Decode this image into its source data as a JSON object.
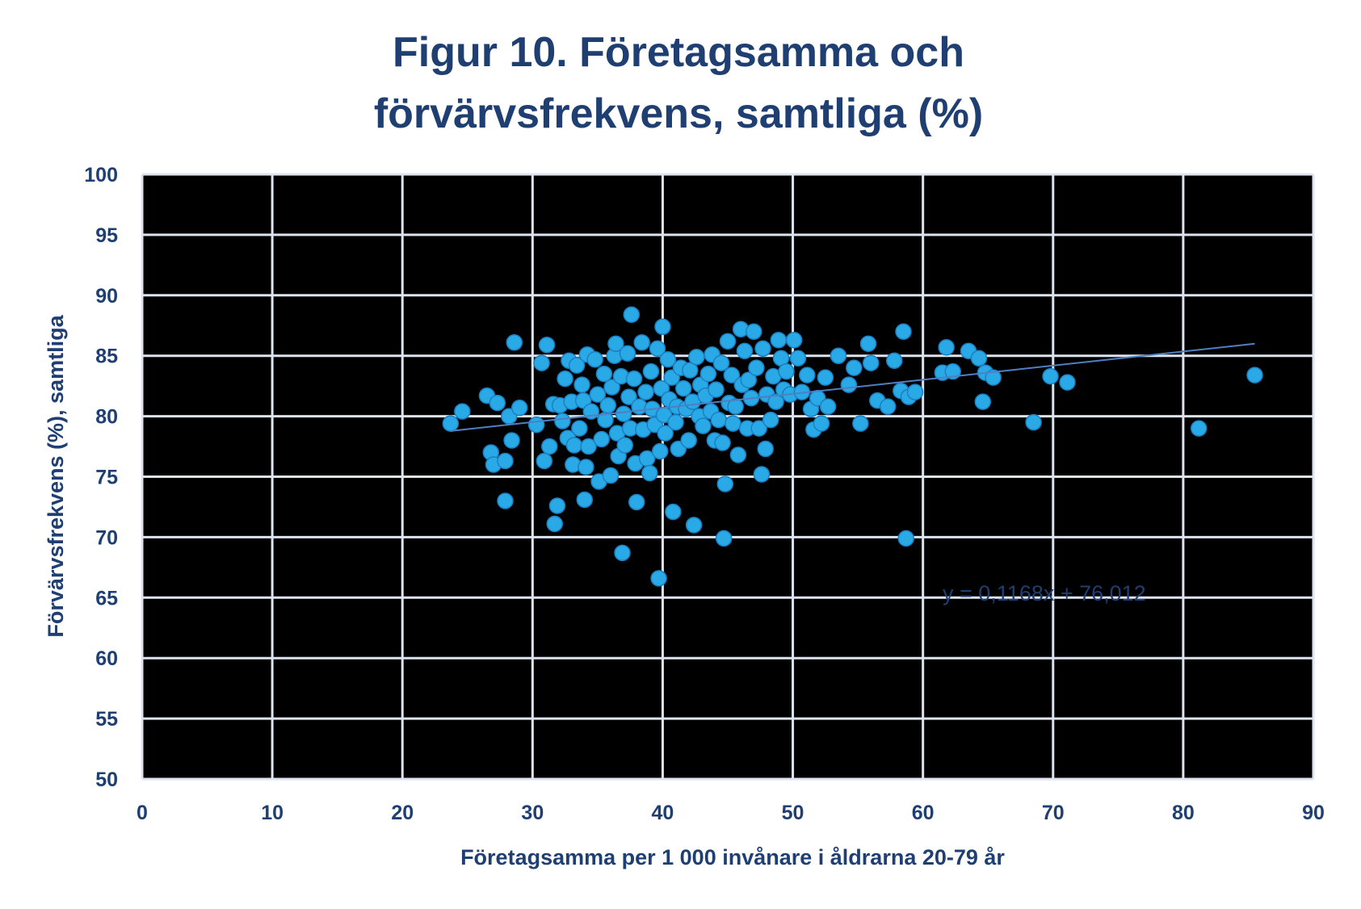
{
  "chart_data": {
    "type": "scatter",
    "title": [
      "Figur 10. Företagsamma och",
      "förvärvsfrekvens, samtliga (%)"
    ],
    "xlabel": "Företagsamma per 1 000 invånare i åldrarna 20-79 år",
    "ylabel": "Förvärvsfrekvens (%), samtliga",
    "xlim": [
      0,
      90
    ],
    "ylim": [
      50,
      100
    ],
    "xticks": [
      "0",
      "10",
      "20",
      "30",
      "40",
      "50",
      "60",
      "70",
      "80",
      "90"
    ],
    "yticks": [
      "50",
      "55",
      "60",
      "65",
      "70",
      "75",
      "80",
      "85",
      "90",
      "95",
      "100"
    ],
    "grid": true,
    "colors": {
      "plot_background": "#000000",
      "grid": "#dde3ef",
      "marker": "#29a9e6",
      "marker_edge": "#1b7fc1",
      "trendline": "#4f7fc2",
      "text": "#1f3f73"
    },
    "trendline": {
      "slope": 0.1168,
      "intercept": 76.012,
      "x_range": [
        23.7,
        85.5
      ],
      "label": "y = 0,1168x + 76,012"
    },
    "series": [
      {
        "points": [
          [
            23.7,
            79.4
          ],
          [
            24.6,
            80.4
          ],
          [
            26.5,
            81.7
          ],
          [
            26.8,
            77.0
          ],
          [
            27.0,
            76.0
          ],
          [
            27.3,
            81.1
          ],
          [
            27.9,
            76.3
          ],
          [
            27.9,
            73.0
          ],
          [
            28.2,
            80.0
          ],
          [
            28.4,
            78.0
          ],
          [
            28.6,
            86.1
          ],
          [
            29.0,
            80.7
          ],
          [
            30.3,
            79.3
          ],
          [
            30.7,
            84.4
          ],
          [
            30.9,
            76.3
          ],
          [
            31.1,
            85.9
          ],
          [
            31.3,
            77.5
          ],
          [
            31.6,
            81.0
          ],
          [
            31.7,
            71.1
          ],
          [
            31.9,
            72.6
          ],
          [
            32.1,
            80.9
          ],
          [
            32.3,
            79.6
          ],
          [
            32.5,
            83.1
          ],
          [
            32.7,
            78.2
          ],
          [
            32.8,
            84.6
          ],
          [
            33.0,
            81.2
          ],
          [
            33.1,
            76.0
          ],
          [
            33.2,
            77.6
          ],
          [
            33.4,
            84.2
          ],
          [
            33.6,
            79.0
          ],
          [
            33.8,
            82.6
          ],
          [
            33.9,
            81.3
          ],
          [
            34.0,
            73.1
          ],
          [
            34.1,
            75.8
          ],
          [
            34.2,
            85.1
          ],
          [
            34.3,
            77.5
          ],
          [
            34.5,
            80.4
          ],
          [
            34.8,
            84.7
          ],
          [
            35.0,
            81.8
          ],
          [
            35.1,
            74.6
          ],
          [
            35.3,
            78.1
          ],
          [
            35.5,
            83.5
          ],
          [
            35.6,
            79.7
          ],
          [
            35.8,
            80.9
          ],
          [
            36.0,
            75.1
          ],
          [
            36.1,
            82.4
          ],
          [
            36.3,
            85.0
          ],
          [
            36.4,
            86.0
          ],
          [
            36.5,
            78.6
          ],
          [
            36.6,
            76.7
          ],
          [
            36.8,
            83.3
          ],
          [
            36.9,
            68.7
          ],
          [
            37.0,
            80.2
          ],
          [
            37.1,
            77.6
          ],
          [
            37.3,
            85.2
          ],
          [
            37.4,
            81.6
          ],
          [
            37.5,
            79.0
          ],
          [
            37.6,
            88.4
          ],
          [
            37.8,
            83.1
          ],
          [
            37.9,
            76.1
          ],
          [
            38.0,
            72.9
          ],
          [
            38.2,
            80.8
          ],
          [
            38.4,
            86.1
          ],
          [
            38.5,
            78.9
          ],
          [
            38.7,
            82.0
          ],
          [
            38.8,
            76.5
          ],
          [
            39.0,
            75.3
          ],
          [
            39.1,
            83.7
          ],
          [
            39.2,
            80.6
          ],
          [
            39.4,
            79.3
          ],
          [
            39.6,
            85.6
          ],
          [
            39.7,
            66.6
          ],
          [
            39.8,
            77.1
          ],
          [
            39.9,
            82.3
          ],
          [
            40.0,
            87.4
          ],
          [
            40.1,
            80.1
          ],
          [
            40.2,
            78.6
          ],
          [
            40.4,
            84.7
          ],
          [
            40.5,
            81.4
          ],
          [
            40.7,
            83.2
          ],
          [
            40.8,
            72.1
          ],
          [
            41.0,
            79.5
          ],
          [
            41.1,
            80.8
          ],
          [
            41.2,
            77.3
          ],
          [
            41.4,
            84.0
          ],
          [
            41.6,
            82.3
          ],
          [
            41.8,
            80.6
          ],
          [
            42.0,
            78.0
          ],
          [
            42.1,
            83.8
          ],
          [
            42.3,
            81.2
          ],
          [
            42.4,
            71.0
          ],
          [
            42.6,
            84.9
          ],
          [
            42.8,
            80.0
          ],
          [
            42.9,
            82.6
          ],
          [
            43.1,
            79.2
          ],
          [
            43.3,
            81.7
          ],
          [
            43.5,
            83.5
          ],
          [
            43.7,
            80.4
          ],
          [
            43.8,
            85.1
          ],
          [
            44.0,
            78.0
          ],
          [
            44.1,
            82.2
          ],
          [
            44.3,
            79.7
          ],
          [
            44.5,
            84.4
          ],
          [
            44.6,
            77.8
          ],
          [
            44.7,
            69.9
          ],
          [
            44.8,
            74.4
          ],
          [
            45.0,
            86.2
          ],
          [
            45.1,
            81.1
          ],
          [
            45.3,
            83.4
          ],
          [
            45.4,
            79.4
          ],
          [
            45.6,
            80.8
          ],
          [
            45.8,
            76.8
          ],
          [
            46.0,
            87.2
          ],
          [
            46.1,
            82.6
          ],
          [
            46.3,
            85.4
          ],
          [
            46.5,
            79.0
          ],
          [
            46.6,
            83.0
          ],
          [
            46.8,
            81.5
          ],
          [
            47.0,
            87.0
          ],
          [
            47.2,
            84.0
          ],
          [
            47.4,
            79.0
          ],
          [
            47.6,
            75.2
          ],
          [
            47.7,
            85.6
          ],
          [
            47.9,
            77.3
          ],
          [
            48.0,
            81.8
          ],
          [
            48.3,
            79.7
          ],
          [
            48.5,
            83.3
          ],
          [
            48.7,
            81.2
          ],
          [
            48.9,
            86.3
          ],
          [
            49.1,
            84.8
          ],
          [
            49.3,
            82.2
          ],
          [
            49.5,
            83.7
          ],
          [
            49.8,
            81.8
          ],
          [
            50.1,
            86.3
          ],
          [
            50.4,
            84.8
          ],
          [
            50.7,
            82.0
          ],
          [
            51.1,
            83.4
          ],
          [
            51.4,
            80.6
          ],
          [
            51.6,
            78.9
          ],
          [
            51.9,
            81.5
          ],
          [
            52.2,
            79.4
          ],
          [
            52.5,
            83.2
          ],
          [
            52.7,
            80.8
          ],
          [
            53.5,
            85.0
          ],
          [
            54.3,
            82.6
          ],
          [
            54.7,
            84.0
          ],
          [
            55.2,
            79.4
          ],
          [
            55.8,
            86.0
          ],
          [
            56.0,
            84.4
          ],
          [
            56.5,
            81.3
          ],
          [
            57.3,
            80.8
          ],
          [
            57.8,
            84.6
          ],
          [
            58.3,
            82.1
          ],
          [
            58.5,
            87.0
          ],
          [
            58.7,
            69.9
          ],
          [
            58.9,
            81.6
          ],
          [
            59.4,
            82.0
          ],
          [
            61.5,
            83.6
          ],
          [
            61.8,
            85.7
          ],
          [
            62.3,
            83.7
          ],
          [
            63.5,
            85.4
          ],
          [
            64.3,
            84.8
          ],
          [
            64.6,
            81.2
          ],
          [
            64.8,
            83.6
          ],
          [
            65.4,
            83.2
          ],
          [
            68.5,
            79.5
          ],
          [
            69.8,
            83.3
          ],
          [
            71.1,
            82.8
          ],
          [
            81.2,
            79.0
          ],
          [
            85.5,
            83.4
          ]
        ]
      }
    ]
  }
}
